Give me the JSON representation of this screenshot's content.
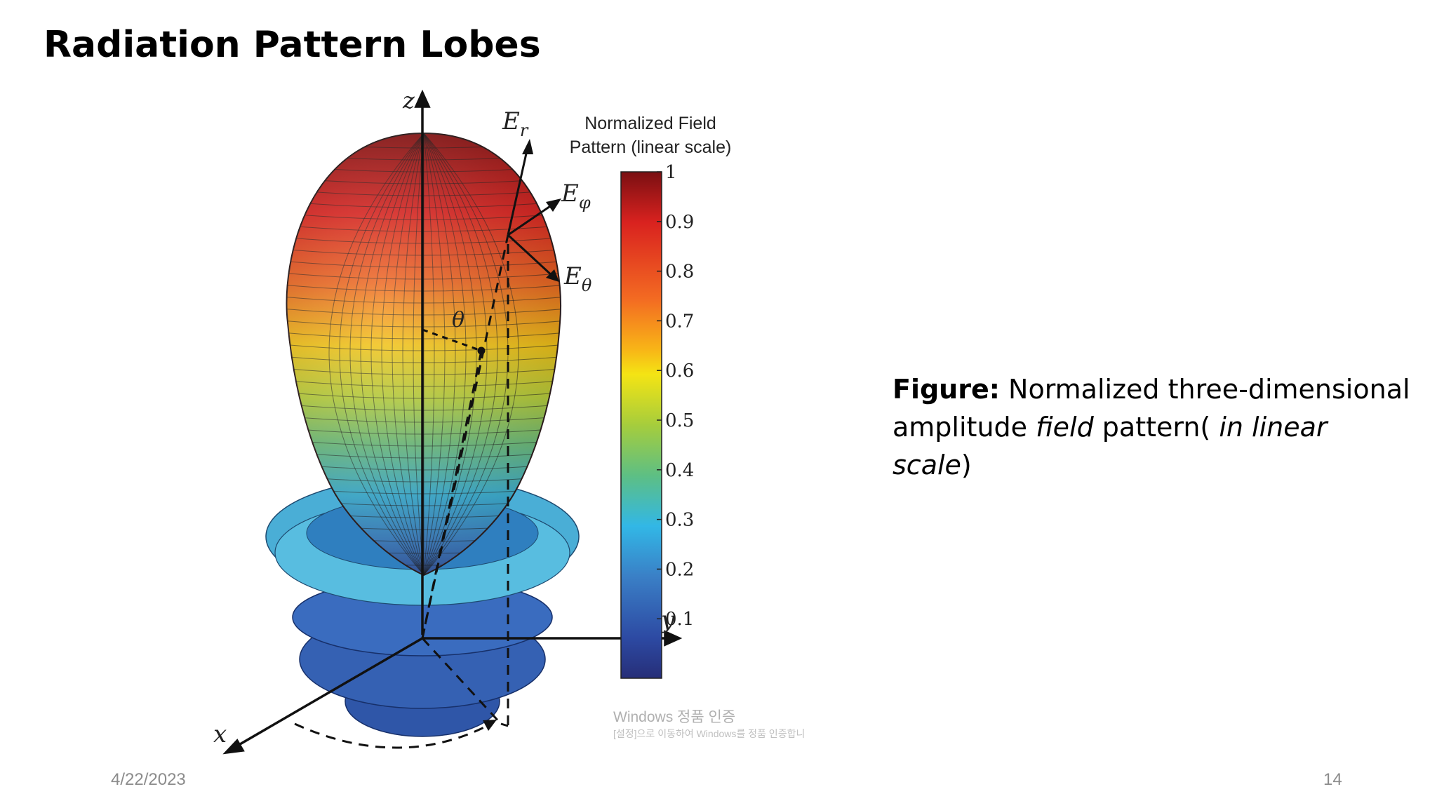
{
  "slide": {
    "title": "Radiation Pattern Lobes",
    "date": "4/22/2023",
    "page_number": "14"
  },
  "caption": {
    "label": "Figure:",
    "text_1": " Normalized three-dimensional amplitude ",
    "em_1": "field",
    "text_2": " pattern( ",
    "em_2": "in linear scale",
    "text_3": ")"
  },
  "figure": {
    "axis_labels": {
      "z": "z",
      "y": "y",
      "x": "x"
    },
    "vector_labels": {
      "er": "E",
      "er_sub": "r",
      "ephi": "E",
      "ephi_sub": "φ",
      "etheta": "E",
      "etheta_sub": "θ"
    },
    "angle_label": "θ",
    "colorbar": {
      "title_line1": "Normalized Field",
      "title_line2": "Pattern (linear scale)",
      "ticks": [
        "1",
        "0.9",
        "0.8",
        "0.7",
        "0.6",
        "0.5",
        "0.4",
        "0.3",
        "0.2",
        "0.1"
      ]
    }
  },
  "watermark": {
    "line1": "Windows 정품 인증",
    "line2": "[설정]으로 이동하여 Windows를 정품 인증합니"
  }
}
